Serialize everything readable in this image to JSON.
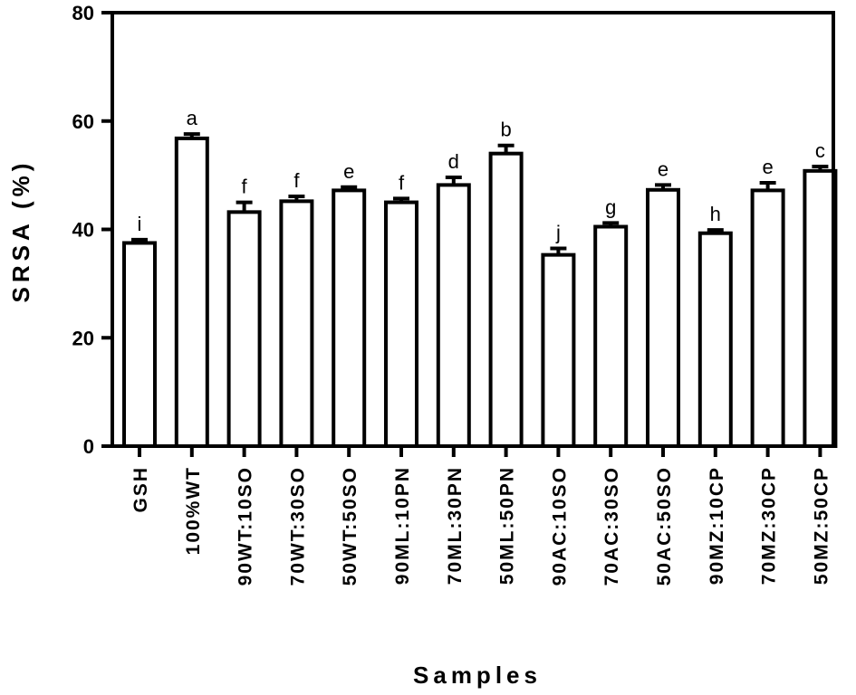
{
  "chart_data": {
    "type": "bar",
    "xlabel": "Samples",
    "ylabel": "SRSA (%)",
    "ylim": [
      0,
      80
    ],
    "yticks": [
      0,
      20,
      40,
      60,
      80
    ],
    "grid": false,
    "legend": "none",
    "categories": [
      "GSH",
      "100%WT",
      "90WT:10SO",
      "70WT:30SO",
      "50WT:50SO",
      "90ML:10PN",
      "70ML:30PN",
      "50ML:50PN",
      "90AC:10SO",
      "70AC:30SO",
      "50AC:50SO",
      "90MZ:10CP",
      "70MZ:30CP",
      "50MZ:50CP"
    ],
    "values": [
      37.5,
      56.8,
      43.2,
      45.2,
      47.2,
      45.0,
      48.2,
      54.0,
      35.3,
      40.5,
      47.3,
      39.3,
      47.2,
      50.8
    ],
    "errors": [
      0.6,
      0.8,
      1.8,
      0.9,
      0.6,
      0.7,
      1.4,
      1.5,
      1.2,
      0.7,
      0.9,
      0.6,
      1.4,
      0.8
    ],
    "significance_letters": [
      "i",
      "a",
      "f",
      "f",
      "e",
      "f",
      "d",
      "b",
      "j",
      "g",
      "e",
      "h",
      "e",
      "c"
    ],
    "colors": {
      "bar_fill": "#ffffff",
      "bar_stroke": "#000000",
      "axis": "#000000"
    }
  }
}
